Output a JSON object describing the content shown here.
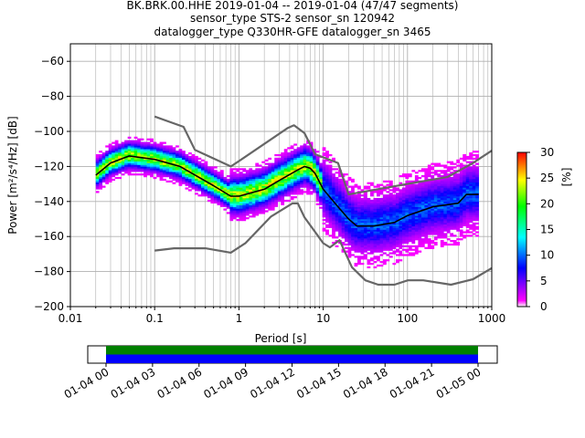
{
  "chart_data": [
    {
      "type": "heatmap",
      "title_lines": [
        "BK.BRK.00.HHE   2019-01-04 -- 2019-01-04  (47/47 segments)",
        "sensor_type STS-2 sensor_sn 120942",
        "datalogger_type Q330HR-GFE datalogger_sn 3465"
      ],
      "xlabel": "Period [s]",
      "ylabel": "Power [m²/s⁴/Hz] [dB]",
      "xscale": "log",
      "xlim": [
        0.01,
        1000
      ],
      "ylim": [
        -200,
        -50
      ],
      "x_tick_labels": [
        "0.01",
        "0.1",
        "1",
        "10",
        "100",
        "1000"
      ],
      "y_ticks": [
        -200,
        -180,
        -160,
        -140,
        -120,
        -100,
        -80,
        -60
      ],
      "grid": true,
      "colorbar": {
        "label": "[%]",
        "range": [
          0,
          30
        ],
        "ticks": [
          0,
          5,
          10,
          15,
          20,
          25,
          30
        ],
        "colors": [
          "#ffffff",
          "#ff00ff",
          "#0000ff",
          "#00ffff",
          "#00ff00",
          "#ffff00",
          "#ff0000"
        ]
      },
      "mode_curve": {
        "period": [
          0.02,
          0.03,
          0.05,
          0.1,
          0.2,
          0.5,
          0.8,
          1,
          2,
          3,
          5,
          6,
          7,
          8,
          10,
          15,
          20,
          25,
          40,
          70,
          100,
          200,
          400,
          500,
          700
        ],
        "power": [
          -125,
          -118,
          -114,
          -116,
          -120,
          -131,
          -137,
          -137,
          -133,
          -128,
          -122,
          -120,
          -121,
          -124,
          -133,
          -143,
          -150,
          -154,
          -154,
          -152,
          -148,
          -143,
          -141,
          -136,
          -136
        ]
      },
      "noise_model_high": {
        "period": [
          0.1,
          0.22,
          0.3,
          0.8,
          1,
          3.8,
          4.5,
          6,
          8,
          15,
          20,
          100,
          300,
          600,
          1000
        ],
        "power": [
          -91.5,
          -97.4,
          -110.5,
          -120,
          -117,
          -98,
          -96.5,
          -101,
          -113,
          -118,
          -136,
          -130,
          -126,
          -118,
          -111
        ]
      },
      "noise_model_low": {
        "period": [
          0.1,
          0.17,
          0.4,
          0.8,
          1.2,
          2.4,
          4.3,
          5,
          6,
          10,
          12,
          15.6,
          21.9,
          31.6,
          45,
          70,
          101,
          154,
          328,
          600,
          1000
        ],
        "power": [
          -168,
          -166.7,
          -166.7,
          -169.2,
          -163.7,
          -148.6,
          -141.1,
          -141.1,
          -149,
          -163.8,
          -166.2,
          -162.1,
          -177.5,
          -185,
          -187.5,
          -187.5,
          -185,
          -185,
          -187.5,
          -184.4,
          -178
        ]
      }
    },
    {
      "type": "timeline",
      "x_tick_labels": [
        "01-04 00",
        "01-04 03",
        "01-04 06",
        "01-04 09",
        "01-04 12",
        "01-04 15",
        "01-04 18",
        "01-04 21",
        "01-05 00"
      ],
      "series": [
        {
          "color": "#008000",
          "start_hour": 0,
          "end_hour": 24
        },
        {
          "color": "#0000ff",
          "start_hour": 0,
          "end_hour": 24
        }
      ]
    }
  ]
}
